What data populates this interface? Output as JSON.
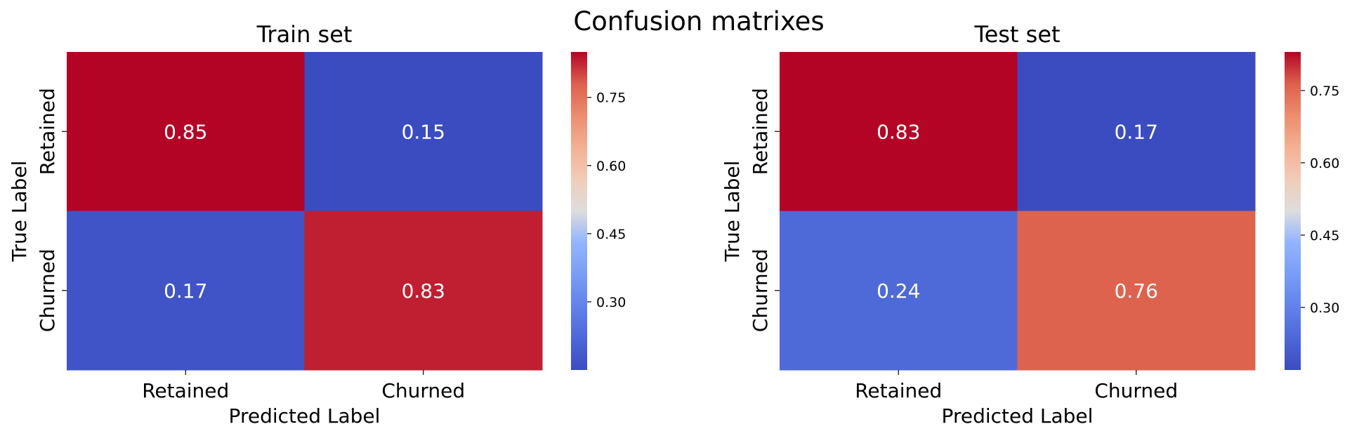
{
  "chart_data": {
    "title": "Confusion matrixes",
    "colormap": "coolwarm",
    "charts": [
      {
        "type": "heatmap",
        "title": "Train set",
        "xlabel": "Predicted Label",
        "ylabel": "True Label",
        "x_categories": [
          "Retained",
          "Churned"
        ],
        "y_categories": [
          "Retained",
          "Churned"
        ],
        "values": [
          [
            0.85,
            0.15
          ],
          [
            0.17,
            0.83
          ]
        ],
        "annotations": [
          [
            "0.85",
            "0.15"
          ],
          [
            "0.17",
            "0.83"
          ]
        ],
        "colorbar": {
          "range": [
            0.15,
            0.85
          ],
          "ticks": [
            "0.30",
            "0.45",
            "0.60",
            "0.75"
          ]
        }
      },
      {
        "type": "heatmap",
        "title": "Test set",
        "xlabel": "Predicted Label",
        "ylabel": "True Label",
        "x_categories": [
          "Retained",
          "Churned"
        ],
        "y_categories": [
          "Retained",
          "Churned"
        ],
        "values": [
          [
            0.83,
            0.17
          ],
          [
            0.24,
            0.76
          ]
        ],
        "annotations": [
          [
            "0.83",
            "0.17"
          ],
          [
            "0.24",
            "0.76"
          ]
        ],
        "colorbar": {
          "range": [
            0.17,
            0.83
          ],
          "ticks": [
            "0.30",
            "0.45",
            "0.60",
            "0.75"
          ]
        }
      }
    ]
  }
}
